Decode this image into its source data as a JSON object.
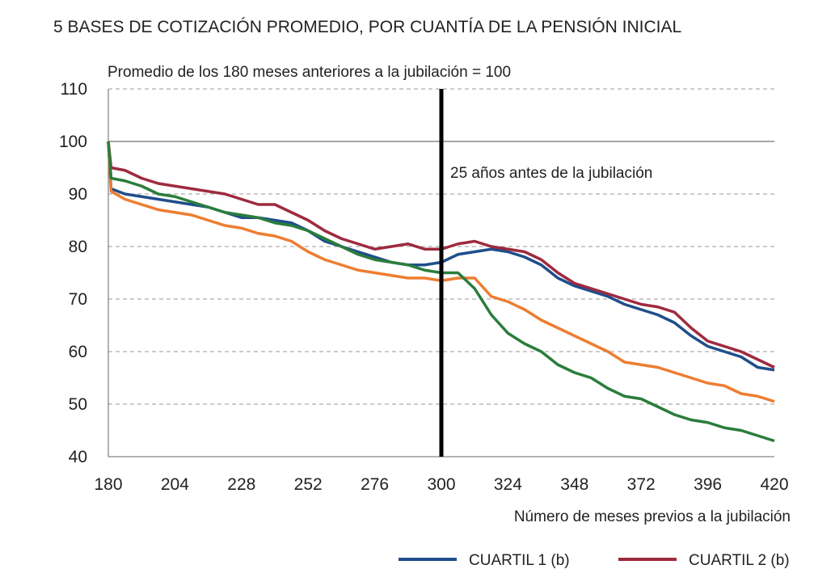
{
  "chart_data": {
    "type": "line",
    "title": "5  BASES DE COTIZACIÓN PROMEDIO, POR CUANTÍA DE LA PENSIÓN INICIAL",
    "subtitle": "Promedio de los 180 meses anteriores a la jubilación = 100",
    "xlabel": "Número de meses previos a la jubilación",
    "annotation": "25 años antes de la jubilación",
    "vline": 300,
    "hline": 100,
    "x": [
      180,
      181,
      186,
      192,
      198,
      204,
      210,
      216,
      222,
      228,
      234,
      240,
      246,
      252,
      258,
      264,
      270,
      276,
      282,
      288,
      294,
      300,
      306,
      312,
      318,
      324,
      330,
      336,
      342,
      348,
      354,
      360,
      366,
      372,
      378,
      384,
      390,
      396,
      402,
      408,
      414,
      420
    ],
    "series": [
      {
        "name": "CUARTIL 1 (b)",
        "color": "#1f4e8c",
        "values": [
          100,
          91,
          90,
          89.5,
          89,
          88.5,
          88,
          87.5,
          86.5,
          85.5,
          85.5,
          85,
          84.5,
          83,
          81,
          80,
          79,
          78,
          77,
          76.5,
          76.5,
          77,
          78.5,
          79,
          79.5,
          79,
          78,
          76.5,
          74,
          72.5,
          71.5,
          70.5,
          69,
          68,
          67,
          65.5,
          63,
          61,
          60,
          59,
          57,
          56.5
        ]
      },
      {
        "name": "CUARTIL 2 (b)",
        "color": "#9e2a3f",
        "values": [
          100,
          95,
          94.5,
          93,
          92,
          91.5,
          91,
          90.5,
          90,
          89,
          88,
          88,
          86.5,
          85,
          83,
          81.5,
          80.5,
          79.5,
          80,
          80.5,
          79.5,
          79.5,
          80.5,
          81,
          80,
          79.5,
          79,
          77.5,
          75,
          73,
          72,
          71,
          70,
          69,
          68.5,
          67.5,
          64.5,
          62,
          61,
          60,
          58.5,
          57
        ]
      },
      {
        "color": "#ee7d31",
        "values": [
          100,
          90.5,
          89,
          88,
          87,
          86.5,
          86,
          85,
          84,
          83.5,
          82.5,
          82,
          81,
          79,
          77.5,
          76.5,
          75.5,
          75,
          74.5,
          74,
          74,
          73.5,
          74,
          74,
          70.5,
          69.5,
          68,
          66,
          64.5,
          63,
          61.5,
          60,
          58,
          57.5,
          57,
          56,
          55,
          54,
          53.5,
          52,
          51.5,
          50.5
        ]
      },
      {
        "color": "#2a7d3b",
        "values": [
          100,
          93,
          92.5,
          91.5,
          90,
          89.5,
          88.5,
          87.5,
          86.5,
          86,
          85.5,
          84.5,
          84,
          83,
          81.5,
          80,
          78.5,
          77.5,
          77,
          76.5,
          75.5,
          75,
          75,
          72,
          67,
          63.5,
          61.5,
          60,
          57.5,
          56,
          55,
          53,
          51.5,
          51,
          49.5,
          48,
          47,
          46.5,
          45.5,
          45,
          44,
          43
        ]
      }
    ],
    "xlim": [
      180,
      420
    ],
    "xticks": [
      180,
      204,
      228,
      252,
      276,
      300,
      324,
      348,
      372,
      396,
      420
    ],
    "ylim": [
      40,
      110
    ],
    "yticks": [
      40,
      50,
      60,
      70,
      80,
      90,
      100,
      110
    ],
    "grid": true
  }
}
